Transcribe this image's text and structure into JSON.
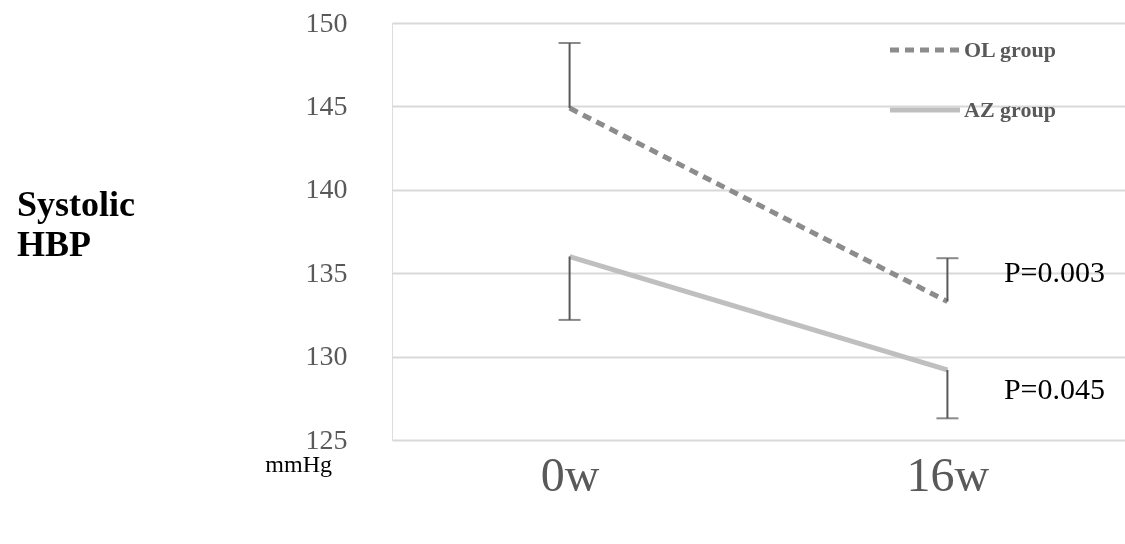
{
  "chart_data": {
    "type": "line",
    "categories": [
      "0w",
      "16w"
    ],
    "series": [
      {
        "name": "OL group",
        "color": "#8c8c8c",
        "line_style": "dashed",
        "values": [
          144.9,
          133.3
        ],
        "errors": [
          [
            144.9,
            148.8
          ],
          [
            133.3,
            135.9
          ]
        ]
      },
      {
        "name": "AZ group",
        "color": "#bfbfbf",
        "line_style": "solid",
        "values": [
          136.0,
          129.2
        ],
        "errors": [
          [
            132.2,
            136.0
          ],
          [
            126.3,
            129.2
          ]
        ]
      }
    ],
    "ylim": [
      125,
      150
    ],
    "yticks": [
      125,
      130,
      135,
      140,
      145,
      150
    ],
    "ylabel": "Systolic\nHBP",
    "grid": "y",
    "legend": "top right",
    "annotations": [
      "P=0.003",
      "P=0.045",
      "mmHg"
    ]
  }
}
